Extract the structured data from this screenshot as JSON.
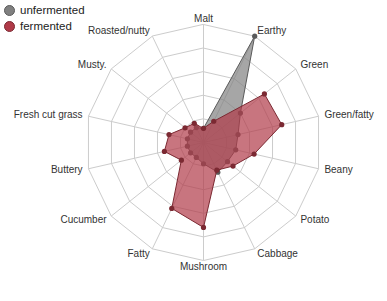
{
  "chart_data": {
    "type": "radar",
    "categories": [
      "Malt",
      "Earthy",
      "Green",
      "Green/fatty",
      "Beany",
      "Potato",
      "Cabbage",
      "Mushroom",
      "Fatty",
      "Cucumber",
      "Buttery",
      "Fresh cut grass",
      "Musty.",
      "Roasted/nutty"
    ],
    "series": [
      {
        "name": "unfermented",
        "color": "#808080",
        "marker": "circle",
        "values": [
          0.6,
          5.0,
          2.0,
          1.5,
          1.4,
          1.3,
          1.4,
          0.9,
          0.7,
          0.7,
          0.7,
          0.7,
          0.7,
          0.7
        ]
      },
      {
        "name": "fermented",
        "color": "#b03a48",
        "marker": "circle",
        "values": [
          0.6,
          1.0,
          3.3,
          3.4,
          2.2,
          1.6,
          1.3,
          3.6,
          3.1,
          1.2,
          1.7,
          1.5,
          1.0,
          0.9
        ]
      }
    ],
    "ylim": [
      0,
      5
    ],
    "yticks": [
      1,
      2,
      3,
      4,
      5
    ],
    "grid": true,
    "tick_labels": false,
    "legend": "top-left"
  }
}
